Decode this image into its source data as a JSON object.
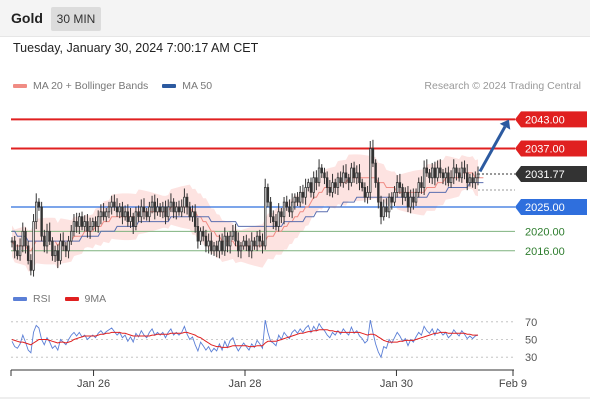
{
  "header": {
    "symbol": "Gold",
    "timeframe": "30 MIN"
  },
  "datetime": "Tuesday, January 30, 2024 7:00:17 AM CET",
  "legend": [
    {
      "label": "MA 20 + Bollinger Bands",
      "color": "#f08c84"
    },
    {
      "label": "MA 50",
      "color": "#2c5aa0"
    }
  ],
  "copyright": "Research © 2024 Trading Central",
  "rsi_legend": [
    {
      "label": "RSI",
      "color": "#5b7fd6"
    },
    {
      "label": "9MA",
      "color": "#e02020"
    }
  ],
  "colors": {
    "resistance": "#e02020",
    "pivot": "#2f6fdd",
    "support": "#7fb27f",
    "candle": "#333333",
    "band": "#fde3e1",
    "arrow": "#2c5aa0"
  },
  "chart_data": [
    {
      "type": "candlestick",
      "ylim": [
        2010,
        2048
      ],
      "levels": [
        {
          "value": 2043.0,
          "label": "2043.00",
          "kind": "resistance"
        },
        {
          "value": 2037.0,
          "label": "2037.00",
          "kind": "resistance"
        },
        {
          "value": 2025.0,
          "label": "2025.00",
          "kind": "pivot"
        },
        {
          "value": 2020.0,
          "label": "2020.00",
          "kind": "support"
        },
        {
          "value": 2016.0,
          "label": "2016.00",
          "kind": "support"
        }
      ],
      "last_price": {
        "value": 2031.77,
        "label": "2031.77"
      },
      "xticks": [
        {
          "label": "Jan 26",
          "pos": 0.175
        },
        {
          "label": "Jan 28",
          "pos": 0.5
        },
        {
          "label": "Jan 30",
          "pos": 0.825
        },
        {
          "label": "Feb 9",
          "pos": 1.0
        }
      ],
      "close": [
        2018,
        2016,
        2015,
        2017,
        2020,
        2017,
        2014,
        2012,
        2022,
        2026,
        2025,
        2019,
        2017,
        2020,
        2018,
        2015,
        2016,
        2014,
        2018,
        2017,
        2016,
        2018,
        2020,
        2022,
        2021,
        2023,
        2021,
        2022,
        2020,
        2021,
        2022,
        2021,
        2023,
        2024,
        2023,
        2024,
        2025,
        2026,
        2025,
        2024,
        2025,
        2023,
        2024,
        2022,
        2023,
        2021,
        2024,
        2023,
        2025,
        2024,
        2023,
        2025,
        2026,
        2024,
        2025,
        2024,
        2025,
        2023,
        2025,
        2026,
        2024,
        2025,
        2024,
        2025,
        2027,
        2025,
        2023,
        2024,
        2021,
        2018,
        2020,
        2019,
        2017,
        2018,
        2016,
        2017,
        2016,
        2018,
        2016,
        2019,
        2017,
        2019,
        2020,
        2018,
        2016,
        2017,
        2018,
        2017,
        2016,
        2018,
        2017,
        2019,
        2018,
        2017,
        2029,
        2026,
        2023,
        2022,
        2021,
        2024,
        2023,
        2026,
        2025,
        2024,
        2026,
        2027,
        2026,
        2028,
        2027,
        2029,
        2030,
        2028,
        2031,
        2030,
        2033,
        2032,
        2031,
        2029,
        2028,
        2030,
        2029,
        2031,
        2030,
        2032,
        2031,
        2030,
        2033,
        2031,
        2032,
        2030,
        2029,
        2027,
        2028,
        2037,
        2034,
        2030,
        2026,
        2023,
        2025,
        2024,
        2027,
        2026,
        2028,
        2030,
        2029,
        2027,
        2028,
        2025,
        2027,
        2026,
        2028,
        2030,
        2029,
        2033,
        2032,
        2031,
        2033,
        2031,
        2033,
        2032,
        2031,
        2032,
        2030,
        2031,
        2033,
        2032,
        2031,
        2033,
        2032,
        2030,
        2031,
        2030,
        2031,
        2031.77
      ],
      "ma20": [
        2018,
        2017,
        2017,
        2017,
        2017,
        2017,
        2016,
        2016,
        2017,
        2018,
        2018,
        2018,
        2018,
        2018,
        2018,
        2018,
        2018,
        2017,
        2018,
        2018,
        2018,
        2018,
        2018,
        2019,
        2019,
        2019,
        2019,
        2020,
        2020,
        2020,
        2020,
        2021,
        2021,
        2021,
        2022,
        2022,
        2022,
        2023,
        2023,
        2023,
        2023,
        2023,
        2023,
        2023,
        2023,
        2023,
        2023,
        2024,
        2024,
        2024,
        2024,
        2024,
        2024,
        2024,
        2024,
        2024,
        2024,
        2024,
        2024,
        2025,
        2025,
        2025,
        2025,
        2025,
        2025,
        2025,
        2025,
        2024,
        2024,
        2023,
        2023,
        2022,
        2022,
        2021,
        2020,
        2020,
        2019,
        2019,
        2018,
        2018,
        2018,
        2018,
        2018,
        2017,
        2017,
        2017,
        2017,
        2017,
        2017,
        2017,
        2017,
        2017,
        2017,
        2017,
        2018,
        2019,
        2019,
        2019,
        2020,
        2020,
        2020,
        2021,
        2021,
        2022,
        2022,
        2023,
        2023,
        2024,
        2024,
        2025,
        2025,
        2026,
        2027,
        2027,
        2028,
        2028,
        2029,
        2029,
        2029,
        2029,
        2029,
        2030,
        2030,
        2030,
        2030,
        2031,
        2031,
        2031,
        2031,
        2031,
        2031,
        2031,
        2031,
        2031,
        2031,
        2031,
        2030,
        2030,
        2030,
        2029,
        2029,
        2029,
        2029,
        2028,
        2028,
        2028,
        2028,
        2028,
        2028,
        2028,
        2028,
        2028,
        2028,
        2028,
        2029,
        2029,
        2029,
        2029,
        2030,
        2030,
        2030,
        2031,
        2031,
        2031,
        2031,
        2031,
        2031,
        2032,
        2032,
        2032,
        2032,
        2032,
        2031,
        2031,
        2031,
        2031
      ],
      "ma50": [
        2020,
        2020,
        2019,
        2019,
        2019,
        2019,
        2018,
        2018,
        2018,
        2018,
        2018,
        2018,
        2018,
        2018,
        2018,
        2018,
        2018,
        2018,
        2018,
        2018,
        2018,
        2018,
        2018,
        2018,
        2018,
        2018,
        2019,
        2019,
        2019,
        2019,
        2019,
        2019,
        2019,
        2020,
        2020,
        2020,
        2020,
        2020,
        2020,
        2021,
        2021,
        2021,
        2021,
        2021,
        2021,
        2021,
        2021,
        2022,
        2022,
        2022,
        2022,
        2022,
        2022,
        2022,
        2022,
        2022,
        2022,
        2022,
        2022,
        2023,
        2023,
        2023,
        2023,
        2023,
        2023,
        2023,
        2023,
        2023,
        2023,
        2023,
        2023,
        2023,
        2023,
        2023,
        2022,
        2022,
        2022,
        2022,
        2022,
        2022,
        2022,
        2022,
        2022,
        2022,
        2021,
        2021,
        2021,
        2021,
        2021,
        2021,
        2021,
        2021,
        2021,
        2021,
        2021,
        2021,
        2021,
        2021,
        2021,
        2021,
        2021,
        2022,
        2022,
        2022,
        2022,
        2022,
        2022,
        2022,
        2022,
        2023,
        2023,
        2023,
        2023,
        2024,
        2024,
        2024,
        2024,
        2024,
        2025,
        2025,
        2025,
        2025,
        2025,
        2026,
        2026,
        2026,
        2026,
        2026,
        2027,
        2027,
        2027,
        2027,
        2027,
        2027,
        2027,
        2027,
        2027,
        2027,
        2027,
        2027,
        2027,
        2027,
        2027,
        2027,
        2027,
        2027,
        2027,
        2027,
        2027,
        2027,
        2027,
        2027,
        2027,
        2027,
        2027,
        2028,
        2028,
        2028,
        2028,
        2028,
        2028,
        2028,
        2029,
        2029,
        2029,
        2029,
        2029,
        2029,
        2029,
        2029,
        2030,
        2030,
        2030,
        2030,
        2030,
        2030
      ]
    },
    {
      "type": "line",
      "name": "RSI",
      "ylim": [
        20,
        80
      ],
      "yticks": [
        70,
        50,
        30
      ],
      "rsi": [
        48,
        42,
        40,
        45,
        55,
        47,
        38,
        35,
        58,
        66,
        63,
        50,
        44,
        52,
        47,
        40,
        43,
        38,
        50,
        47,
        44,
        50,
        55,
        58,
        54,
        58,
        53,
        55,
        50,
        53,
        55,
        52,
        57,
        60,
        56,
        59,
        61,
        63,
        59,
        55,
        58,
        52,
        55,
        48,
        53,
        47,
        57,
        53,
        60,
        55,
        52,
        58,
        62,
        55,
        58,
        55,
        58,
        52,
        58,
        62,
        55,
        58,
        55,
        58,
        65,
        56,
        50,
        53,
        44,
        37,
        47,
        43,
        38,
        42,
        36,
        40,
        37,
        45,
        38,
        48,
        41,
        49,
        52,
        43,
        37,
        42,
        46,
        42,
        38,
        45,
        41,
        49,
        45,
        40,
        72,
        58,
        48,
        46,
        43,
        55,
        50,
        58,
        54,
        51,
        58,
        61,
        57,
        62,
        58,
        63,
        66,
        58,
        65,
        60,
        68,
        63,
        60,
        55,
        52,
        58,
        55,
        60,
        56,
        62,
        58,
        55,
        64,
        57,
        60,
        54,
        51,
        46,
        49,
        72,
        58,
        45,
        36,
        30,
        42,
        40,
        50,
        46,
        52,
        58,
        54,
        48,
        51,
        43,
        50,
        47,
        53,
        58,
        55,
        65,
        60,
        57,
        62,
        55,
        62,
        59,
        55,
        58,
        52,
        55,
        61,
        57,
        54,
        60,
        56,
        51,
        54,
        51,
        54,
        55
      ],
      "rsi_ma": [
        50,
        49,
        48,
        47,
        47,
        46,
        45,
        44,
        46,
        48,
        50,
        50,
        50,
        50,
        49,
        48,
        47,
        46,
        47,
        47,
        46,
        47,
        48,
        50,
        51,
        52,
        53,
        54,
        54,
        54,
        54,
        54,
        55,
        56,
        56,
        57,
        57,
        58,
        58,
        58,
        58,
        57,
        57,
        56,
        55,
        54,
        54,
        54,
        54,
        54,
        54,
        54,
        55,
        55,
        56,
        56,
        56,
        56,
        56,
        57,
        57,
        57,
        57,
        57,
        58,
        58,
        57,
        56,
        55,
        53,
        52,
        50,
        48,
        46,
        44,
        43,
        42,
        42,
        41,
        41,
        41,
        42,
        43,
        43,
        43,
        43,
        43,
        43,
        42,
        42,
        42,
        43,
        43,
        43,
        46,
        48,
        48,
        48,
        48,
        49,
        50,
        51,
        52,
        53,
        54,
        55,
        56,
        57,
        57,
        58,
        59,
        59,
        60,
        60,
        61,
        61,
        61,
        61,
        60,
        60,
        59,
        59,
        58,
        58,
        58,
        58,
        58,
        58,
        58,
        58,
        57,
        56,
        55,
        56,
        56,
        55,
        53,
        51,
        49,
        48,
        47,
        47,
        47,
        47,
        48,
        48,
        49,
        49,
        49,
        49,
        50,
        51,
        52,
        53,
        54,
        55,
        56,
        57,
        57,
        58,
        58,
        58,
        57,
        57,
        57,
        57,
        57,
        57,
        57,
        56,
        56,
        55,
        55,
        55
      ]
    }
  ]
}
